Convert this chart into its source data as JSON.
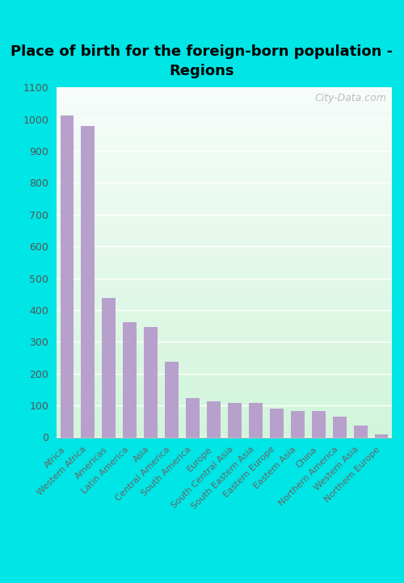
{
  "title": "Place of birth for the foreign-born population -\nRegions",
  "categories": [
    "Africa",
    "Western Africa",
    "Americas",
    "Latin America",
    "Asia",
    "Central America",
    "South America",
    "Europe",
    "South Central Asia",
    "South Eastern Asia",
    "Eastern Europe",
    "Eastern Asia",
    "China",
    "Northern America",
    "Western Asia",
    "Northern Europe"
  ],
  "values": [
    1013,
    978,
    438,
    363,
    347,
    238,
    124,
    113,
    108,
    108,
    90,
    82,
    82,
    65,
    38,
    8
  ],
  "bar_color": "#b8a0cc",
  "outer_background": "#00e5e5",
  "ylim": [
    0,
    1100
  ],
  "yticks": [
    0,
    100,
    200,
    300,
    400,
    500,
    600,
    700,
    800,
    900,
    1000,
    1100
  ],
  "title_fontsize": 13,
  "watermark": "City-Data.com",
  "grid_color": "#ffffff",
  "label_color": "#666666"
}
